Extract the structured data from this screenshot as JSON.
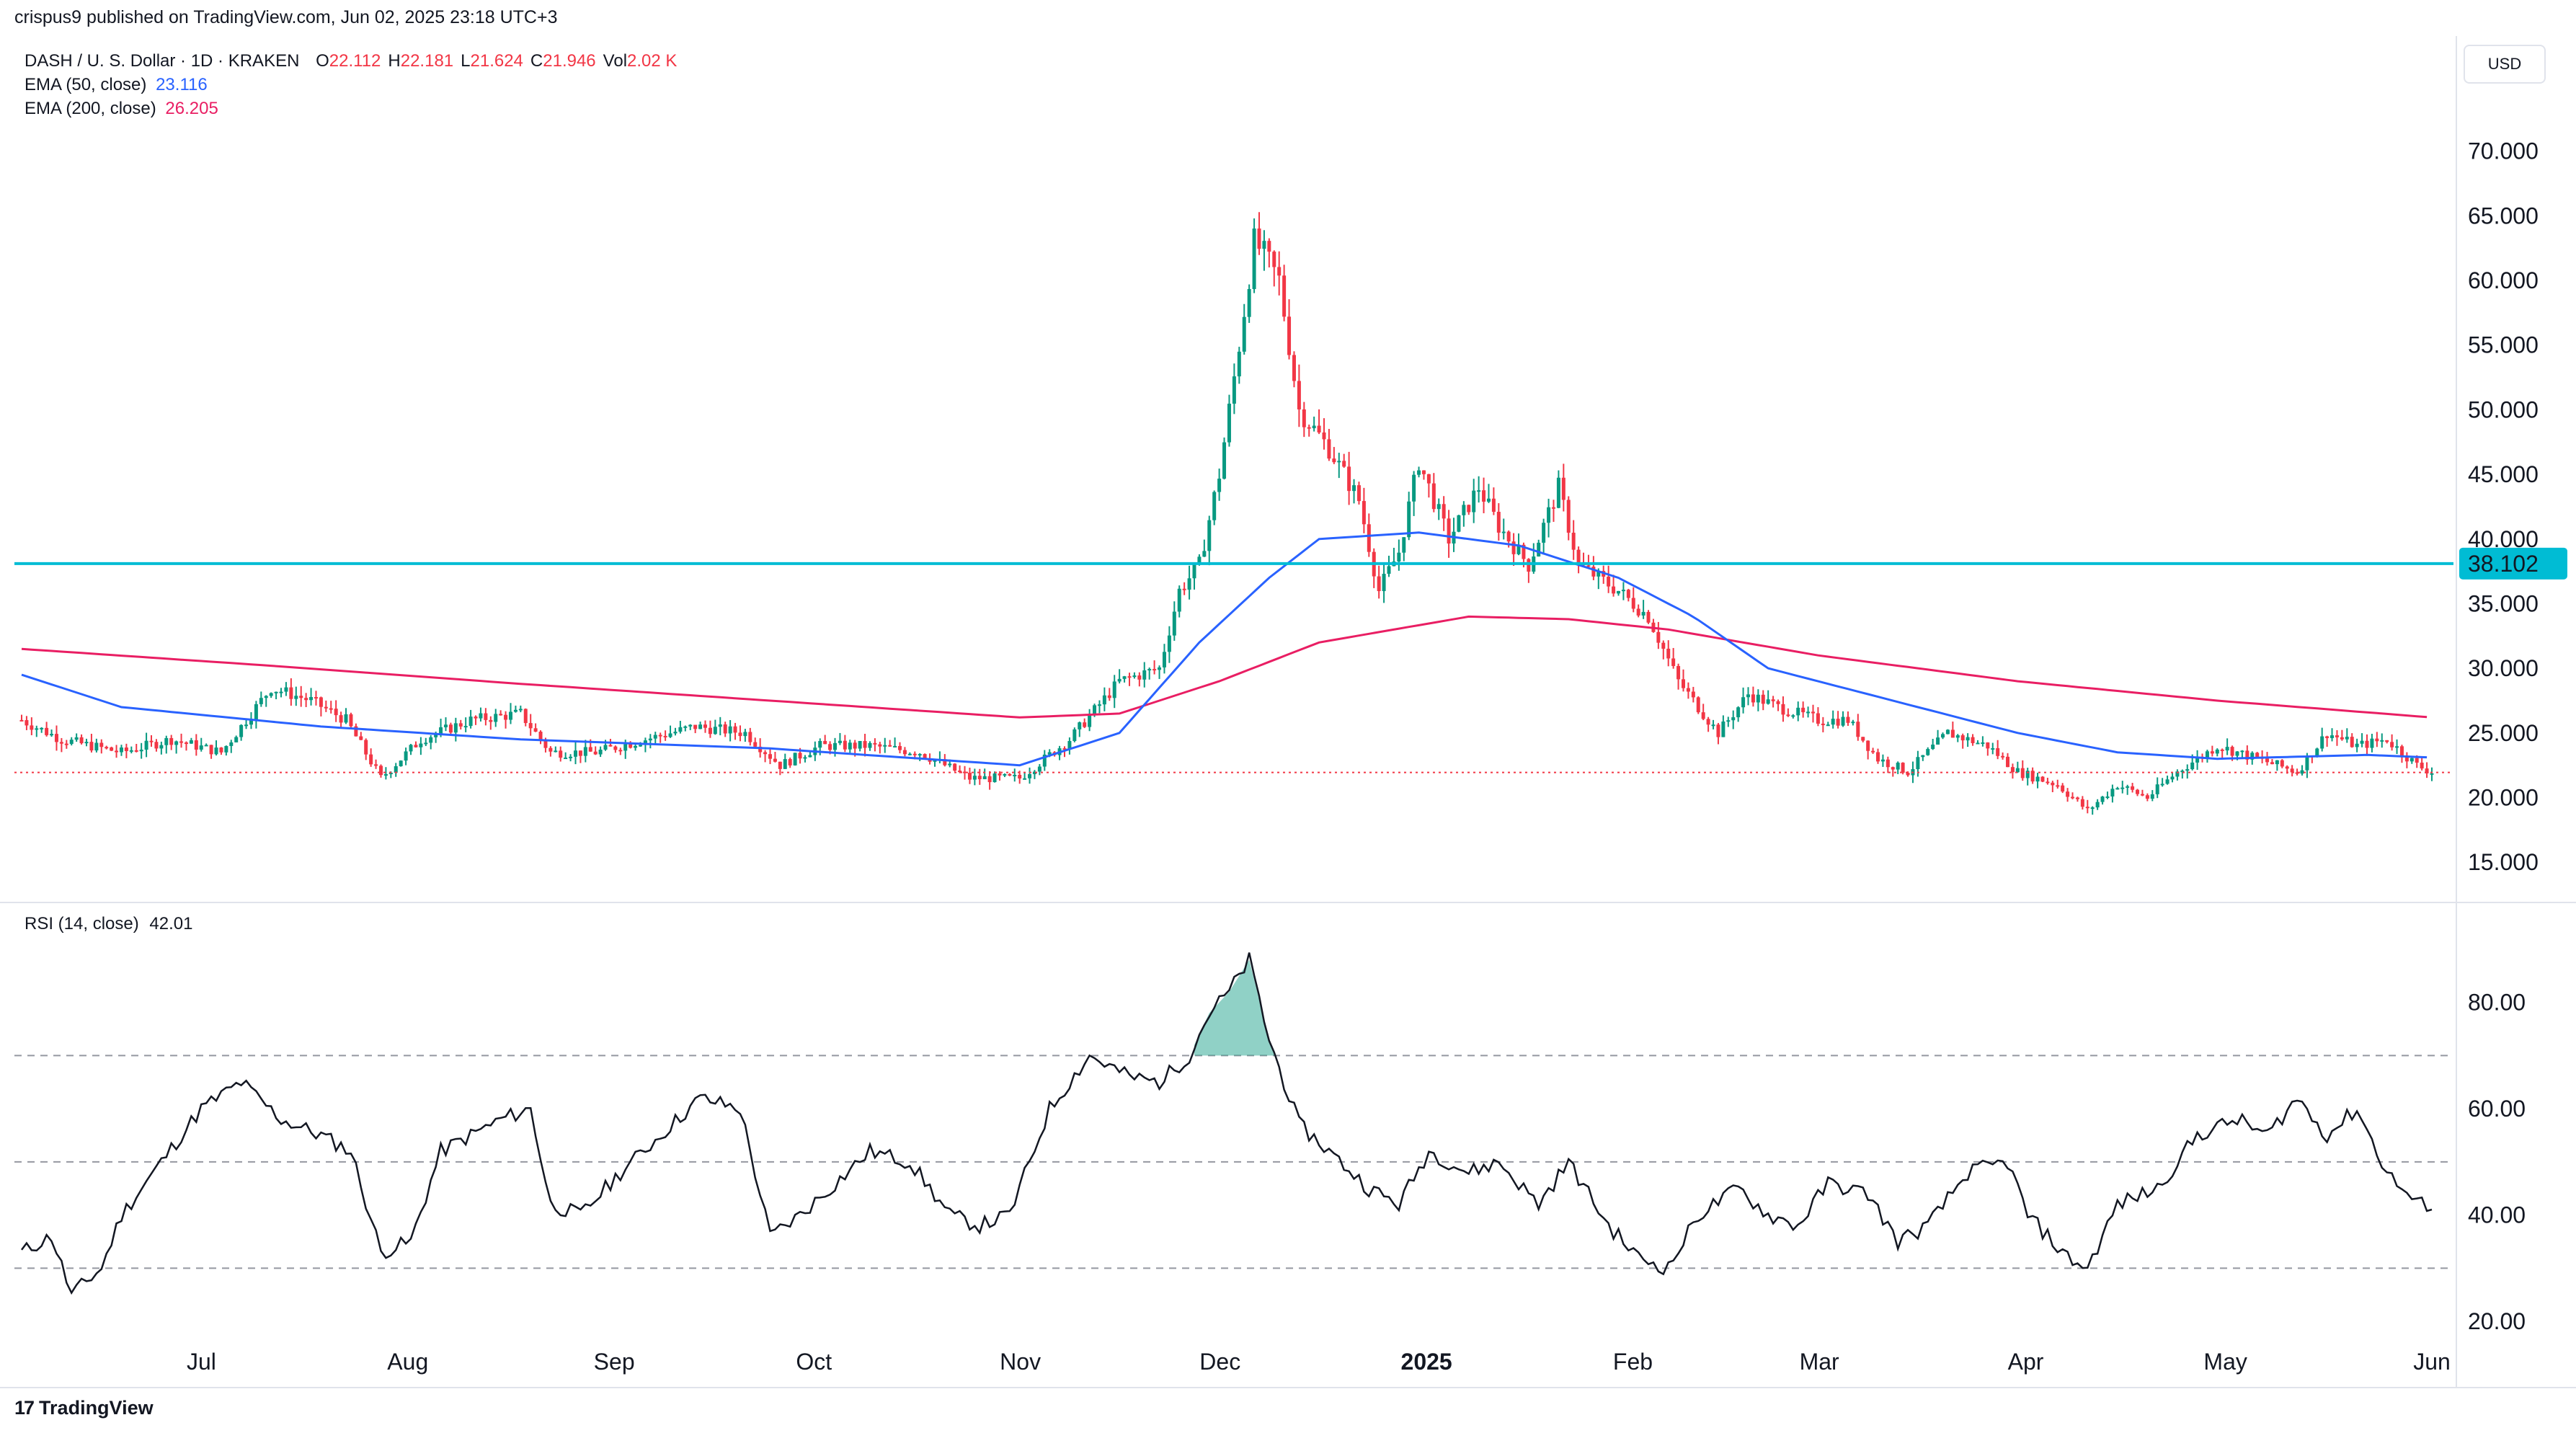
{
  "header": {
    "publisher_line": "crispus9 published on TradingView.com, Jun 02, 2025 23:18 UTC+3"
  },
  "legend": {
    "symbol": "DASH / U. S. Dollar · 1D · KRAKEN",
    "ohlc": [
      {
        "key": "O",
        "value": "22.112"
      },
      {
        "key": "H",
        "value": "22.181"
      },
      {
        "key": "L",
        "value": "21.624"
      },
      {
        "key": "C",
        "value": "21.946"
      },
      {
        "key": "Vol",
        "value": "2.02 K"
      }
    ],
    "ema50_label": "EMA (50, close)",
    "ema50_value": "23.116",
    "ema200_label": "EMA (200, close)",
    "ema200_value": "26.205"
  },
  "rsi_legend": {
    "label": "RSI (14, close)",
    "value": "42.01"
  },
  "currency": "USD",
  "footer": {
    "brand": "TradingView",
    "icon": "tradingview-logo-icon"
  },
  "colors": {
    "up": "#089981",
    "down": "#f23645",
    "ema50": "#2962ff",
    "ema200": "#e91e63",
    "level": "#00bcd4",
    "rsi": "#131722"
  },
  "chart_data": [
    {
      "type": "candlestick",
      "ylim": [
        12,
        75
      ],
      "yticks": [
        "15.000",
        "20.000",
        "25.000",
        "30.000",
        "35.000",
        "40.000",
        "45.000",
        "50.000",
        "55.000",
        "60.000",
        "65.000",
        "70.000"
      ],
      "xticks": [
        "Jul",
        "Aug",
        "Sep",
        "Oct",
        "Nov",
        "Dec",
        "2025",
        "Feb",
        "Mar",
        "Apr",
        "May",
        "Jun"
      ],
      "horizontal_level": {
        "value": 38.102,
        "label": "38.102"
      },
      "last_close": 21.946,
      "price_waypoints": [
        [
          0,
          26
        ],
        [
          8,
          24.5
        ],
        [
          20,
          23.5
        ],
        [
          30,
          24.5
        ],
        [
          40,
          23.5
        ],
        [
          50,
          28.5
        ],
        [
          58,
          27.5
        ],
        [
          65,
          26
        ],
        [
          72,
          21.5
        ],
        [
          80,
          24.5
        ],
        [
          90,
          26
        ],
        [
          100,
          26.5
        ],
        [
          106,
          23.5
        ],
        [
          115,
          23.5
        ],
        [
          125,
          24.5
        ],
        [
          135,
          25.5
        ],
        [
          145,
          25
        ],
        [
          152,
          22.5
        ],
        [
          160,
          24
        ],
        [
          170,
          24
        ],
        [
          180,
          23.5
        ],
        [
          190,
          21.5
        ],
        [
          200,
          21.5
        ],
        [
          210,
          24.5
        ],
        [
          220,
          29
        ],
        [
          228,
          30
        ],
        [
          232,
          36
        ],
        [
          236,
          38
        ],
        [
          240,
          45
        ],
        [
          244,
          55
        ],
        [
          247,
          63
        ],
        [
          249,
          62
        ],
        [
          252,
          60
        ],
        [
          256,
          50
        ],
        [
          262,
          47
        ],
        [
          268,
          43
        ],
        [
          272,
          36
        ],
        [
          276,
          39
        ],
        [
          280,
          46
        ],
        [
          286,
          40
        ],
        [
          292,
          44
        ],
        [
          296,
          41
        ],
        [
          302,
          38
        ],
        [
          308,
          44
        ],
        [
          312,
          38
        ],
        [
          320,
          36
        ],
        [
          326,
          34
        ],
        [
          332,
          29
        ],
        [
          336,
          27
        ],
        [
          340,
          25
        ],
        [
          346,
          28
        ],
        [
          352,
          27
        ],
        [
          360,
          26
        ],
        [
          366,
          26
        ],
        [
          372,
          23
        ],
        [
          378,
          22
        ],
        [
          386,
          25
        ],
        [
          394,
          24
        ],
        [
          400,
          22
        ],
        [
          408,
          21
        ],
        [
          414,
          19
        ],
        [
          420,
          21
        ],
        [
          426,
          20
        ],
        [
          432,
          22
        ],
        [
          440,
          24
        ],
        [
          448,
          23
        ],
        [
          456,
          22
        ],
        [
          462,
          25
        ],
        [
          468,
          24
        ],
        [
          474,
          24.5
        ],
        [
          480,
          22.5
        ],
        [
          483,
          22
        ]
      ],
      "ema50_waypoints": [
        [
          0,
          29.5
        ],
        [
          20,
          27
        ],
        [
          60,
          25.5
        ],
        [
          100,
          24.5
        ],
        [
          150,
          23.8
        ],
        [
          200,
          22.5
        ],
        [
          220,
          25
        ],
        [
          236,
          32
        ],
        [
          250,
          37
        ],
        [
          260,
          40
        ],
        [
          280,
          40.5
        ],
        [
          300,
          39.5
        ],
        [
          320,
          37
        ],
        [
          335,
          34
        ],
        [
          350,
          30
        ],
        [
          380,
          27
        ],
        [
          400,
          25
        ],
        [
          420,
          23.5
        ],
        [
          440,
          23
        ],
        [
          470,
          23.3
        ],
        [
          483,
          23.1
        ]
      ],
      "ema200_waypoints": [
        [
          0,
          31.5
        ],
        [
          50,
          30.2
        ],
        [
          100,
          28.8
        ],
        [
          150,
          27.5
        ],
        [
          200,
          26.2
        ],
        [
          220,
          26.5
        ],
        [
          240,
          29
        ],
        [
          260,
          32
        ],
        [
          290,
          34
        ],
        [
          310,
          33.8
        ],
        [
          330,
          33
        ],
        [
          360,
          31
        ],
        [
          400,
          29
        ],
        [
          440,
          27.5
        ],
        [
          483,
          26.2
        ]
      ]
    },
    {
      "type": "line",
      "name": "RSI (14, close)",
      "ylim": [
        15,
        95
      ],
      "yticks": [
        "20.00",
        "40.00",
        "60.00",
        "80.00"
      ],
      "bands": [
        70,
        50,
        30
      ],
      "waypoints": [
        [
          0,
          33
        ],
        [
          6,
          36
        ],
        [
          10,
          25
        ],
        [
          16,
          30
        ],
        [
          20,
          40
        ],
        [
          28,
          50
        ],
        [
          36,
          60
        ],
        [
          44,
          65
        ],
        [
          52,
          58
        ],
        [
          60,
          55
        ],
        [
          66,
          52
        ],
        [
          72,
          33
        ],
        [
          78,
          35
        ],
        [
          84,
          52
        ],
        [
          90,
          55
        ],
        [
          96,
          58
        ],
        [
          102,
          60
        ],
        [
          106,
          42
        ],
        [
          112,
          40
        ],
        [
          120,
          48
        ],
        [
          128,
          55
        ],
        [
          136,
          62
        ],
        [
          144,
          60
        ],
        [
          150,
          36
        ],
        [
          156,
          40
        ],
        [
          162,
          45
        ],
        [
          170,
          52
        ],
        [
          178,
          50
        ],
        [
          186,
          40
        ],
        [
          192,
          38
        ],
        [
          198,
          40
        ],
        [
          206,
          60
        ],
        [
          214,
          70
        ],
        [
          222,
          66
        ],
        [
          228,
          65
        ],
        [
          234,
          70
        ],
        [
          238,
          78
        ],
        [
          242,
          82
        ],
        [
          246,
          88
        ],
        [
          250,
          73
        ],
        [
          256,
          57
        ],
        [
          262,
          52
        ],
        [
          270,
          45
        ],
        [
          276,
          42
        ],
        [
          282,
          52
        ],
        [
          290,
          48
        ],
        [
          296,
          50
        ],
        [
          304,
          42
        ],
        [
          310,
          50
        ],
        [
          318,
          38
        ],
        [
          324,
          32
        ],
        [
          330,
          30
        ],
        [
          336,
          40
        ],
        [
          344,
          45
        ],
        [
          350,
          40
        ],
        [
          356,
          38
        ],
        [
          362,
          46
        ],
        [
          370,
          44
        ],
        [
          376,
          35
        ],
        [
          382,
          38
        ],
        [
          390,
          48
        ],
        [
          398,
          50
        ],
        [
          402,
          40
        ],
        [
          410,
          32
        ],
        [
          414,
          30
        ],
        [
          420,
          42
        ],
        [
          428,
          45
        ],
        [
          436,
          55
        ],
        [
          444,
          58
        ],
        [
          450,
          55
        ],
        [
          456,
          62
        ],
        [
          462,
          55
        ],
        [
          468,
          60
        ],
        [
          474,
          48
        ],
        [
          480,
          42
        ],
        [
          483,
          42
        ]
      ]
    }
  ]
}
